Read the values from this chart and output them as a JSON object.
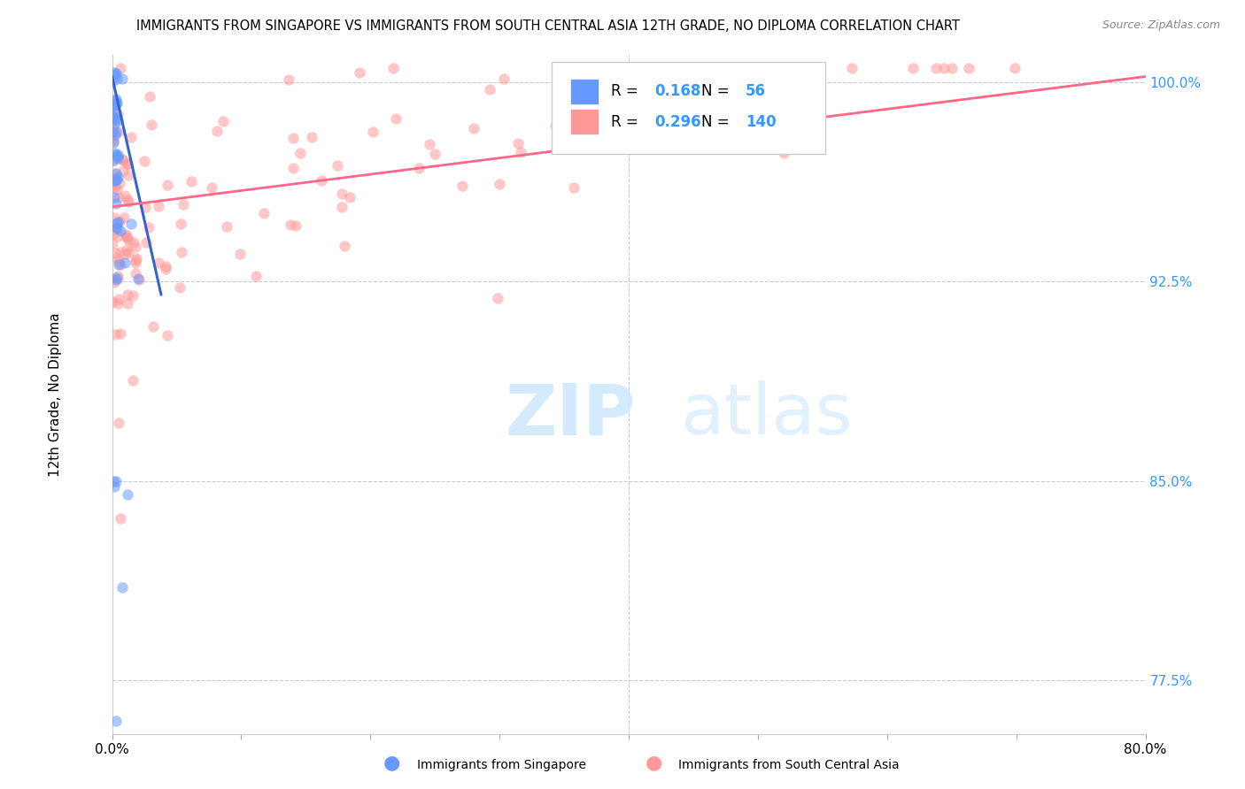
{
  "title": "IMMIGRANTS FROM SINGAPORE VS IMMIGRANTS FROM SOUTH CENTRAL ASIA 12TH GRADE, NO DIPLOMA CORRELATION CHART",
  "source": "Source: ZipAtlas.com",
  "xlabel_singapore": "Immigrants from Singapore",
  "xlabel_sca": "Immigrants from South Central Asia",
  "ylabel": "12th Grade, No Diploma",
  "xlim": [
    0.0,
    0.8
  ],
  "ylim": [
    0.755,
    1.01
  ],
  "ytick_positions": [
    1.0,
    0.925,
    0.85,
    0.775
  ],
  "ytick_labels": [
    "100.0%",
    "92.5%",
    "85.0%",
    "77.5%"
  ],
  "singapore_R": 0.168,
  "singapore_N": 56,
  "sca_R": 0.296,
  "sca_N": 140,
  "singapore_color": "#6699FF",
  "sca_color": "#FF9999",
  "singapore_line_color": "#3366CC",
  "sca_line_color": "#FF6688",
  "watermark_zip": "ZIP",
  "watermark_atlas": "atlas",
  "dot_size": 80,
  "sg_line_x": [
    0.0,
    0.038
  ],
  "sg_line_y": [
    1.002,
    0.92
  ],
  "sca_line_x": [
    0.0,
    0.8
  ],
  "sca_line_y": [
    0.953,
    1.002
  ]
}
